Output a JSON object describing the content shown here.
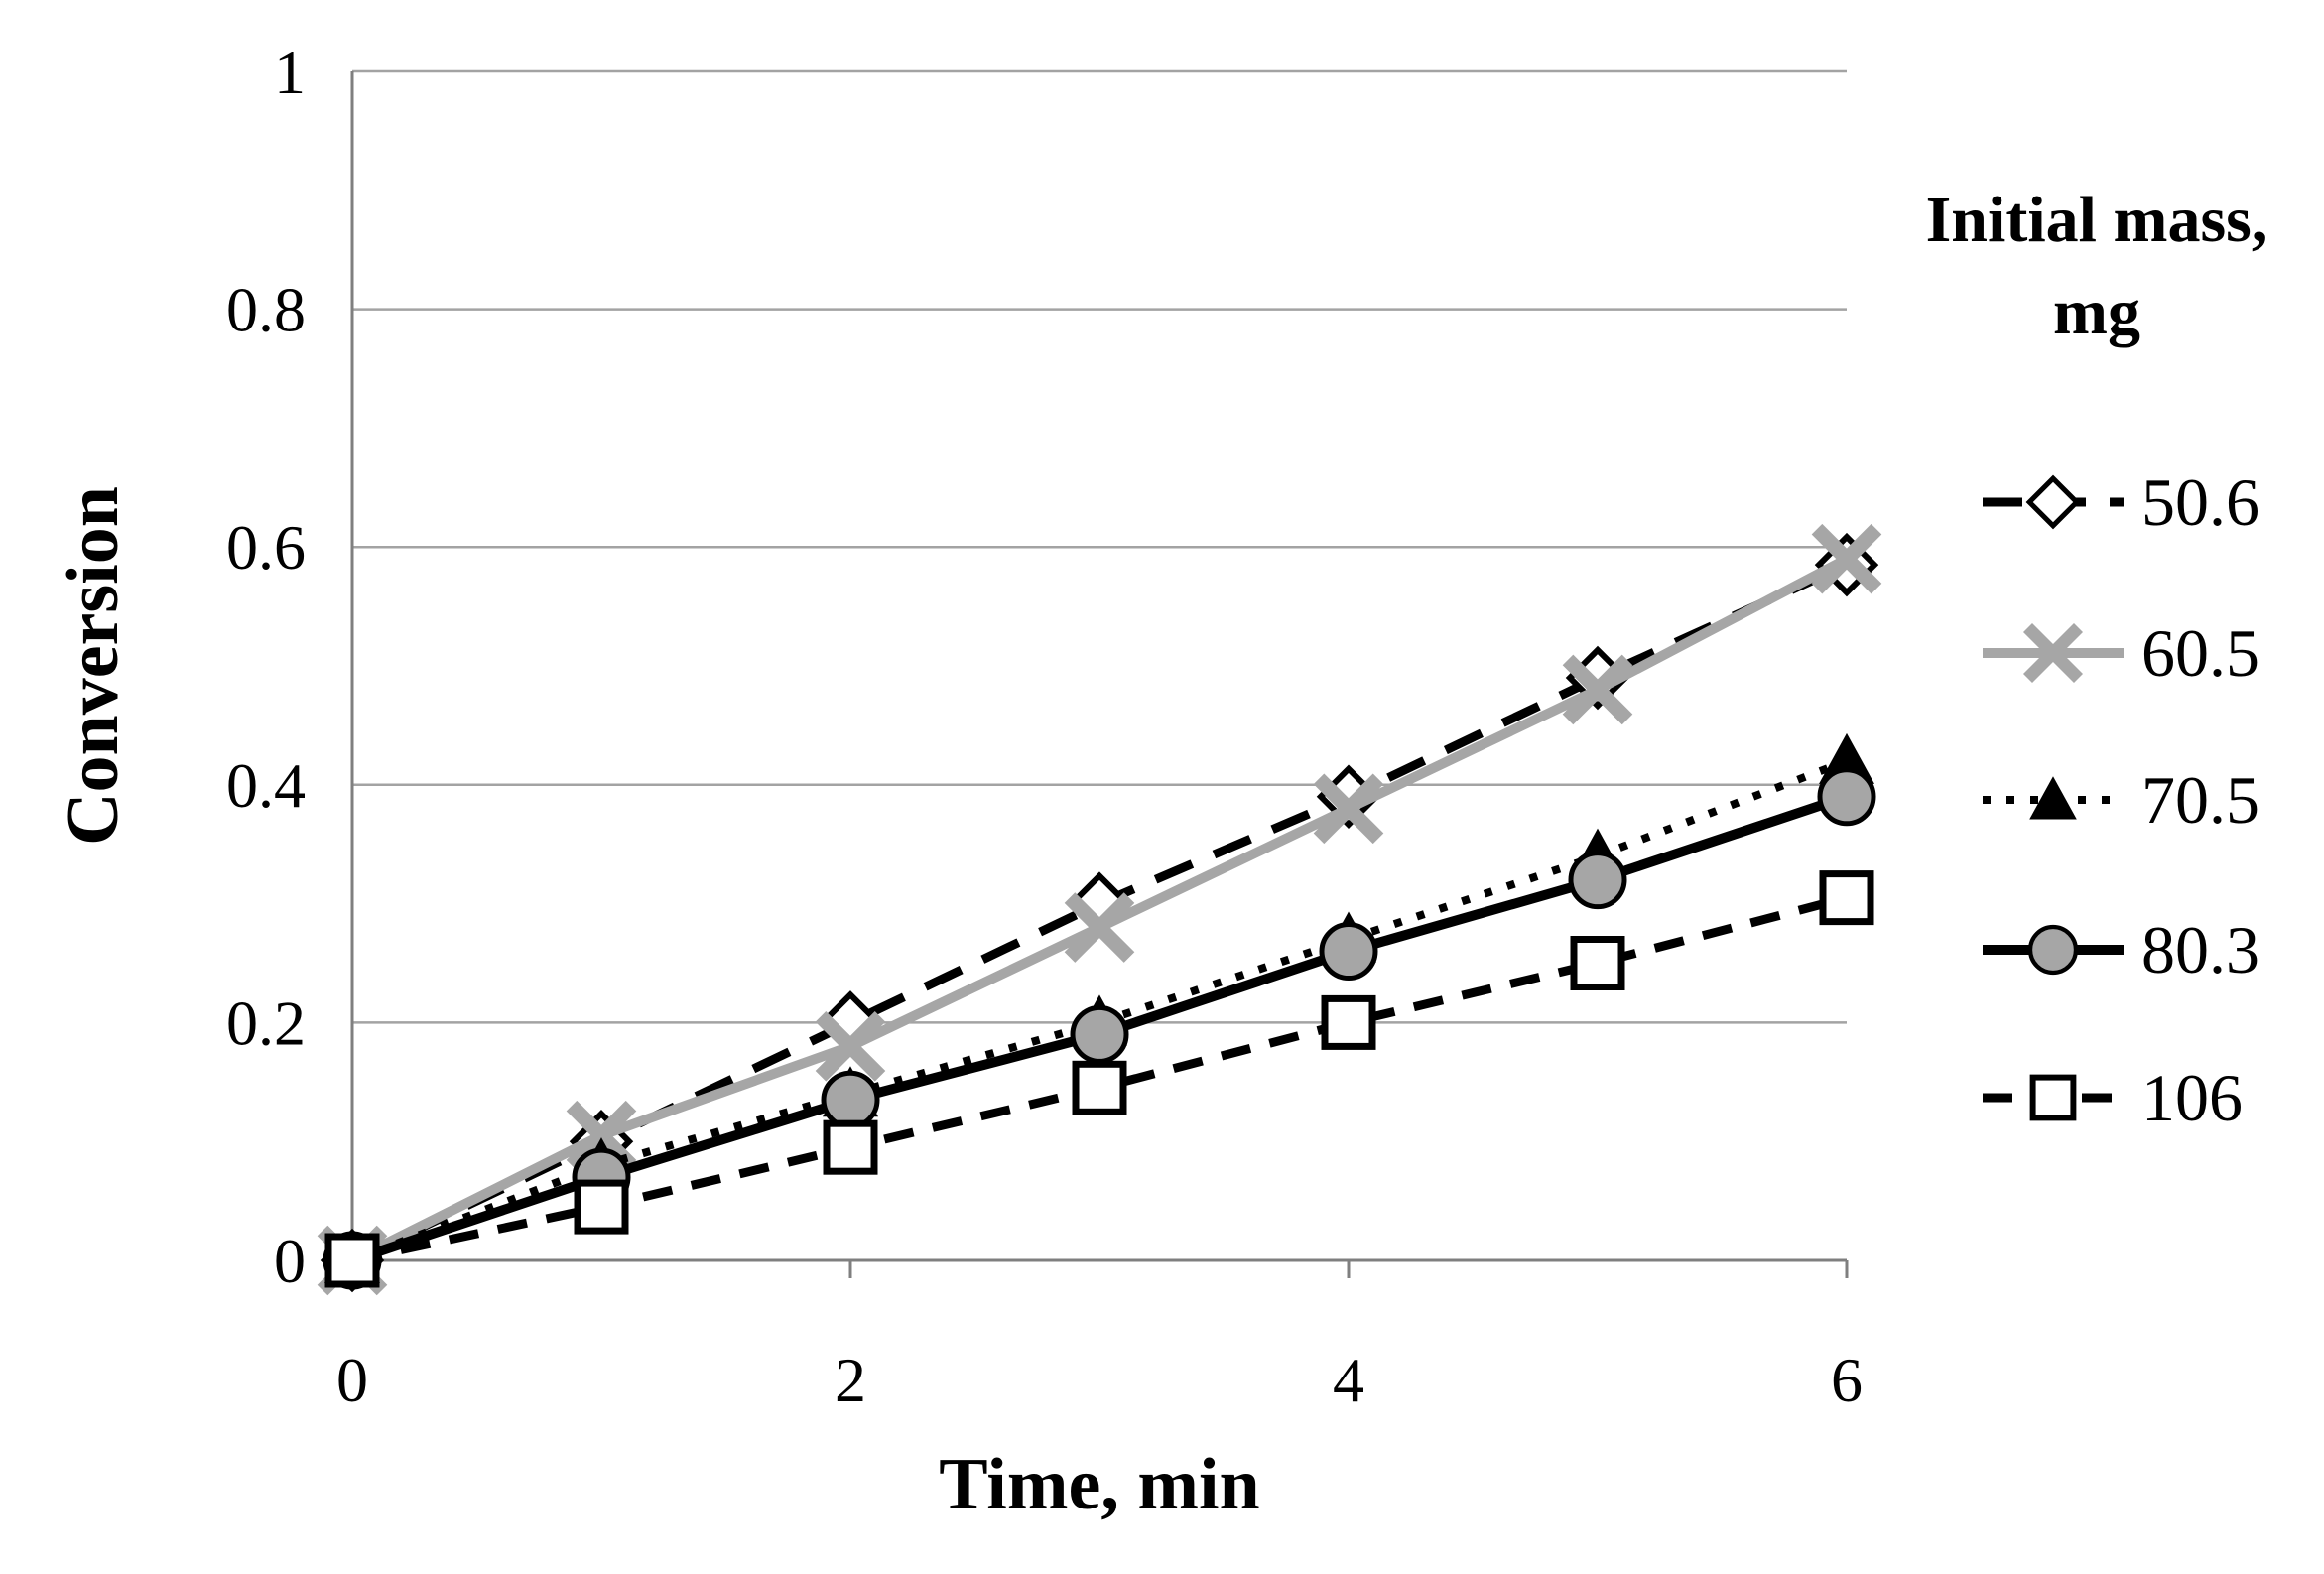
{
  "colors": {
    "black": "#000000",
    "series_gray": "#a6a6a6",
    "gridline": "#a3a3a3",
    "axis": "#7f7f7f",
    "marker_open_fill": "#ffffff",
    "background": "#ffffff",
    "text": "#000000"
  },
  "chart_data": {
    "type": "line",
    "title": "",
    "xlabel": "Time, min",
    "ylabel": "Conversion",
    "xlim": [
      0,
      6
    ],
    "ylim": [
      0,
      1
    ],
    "grid": "horizontal",
    "legend_position": "right",
    "legend_title_line1": "Initial mass,",
    "legend_title_line2": "mg",
    "x": [
      0,
      1,
      2,
      3,
      4,
      5,
      6
    ],
    "xticks": [
      {
        "value": 0,
        "label": "0"
      },
      {
        "value": 2,
        "label": "2"
      },
      {
        "value": 4,
        "label": "4"
      },
      {
        "value": 6,
        "label": "6"
      }
    ],
    "yticks": [
      {
        "value": 0,
        "label": "0"
      },
      {
        "value": 0.2,
        "label": "0.2"
      },
      {
        "value": 0.4,
        "label": "0.4"
      },
      {
        "value": 0.6,
        "label": "0.6"
      },
      {
        "value": 0.8,
        "label": "0.8"
      },
      {
        "value": 1,
        "label": "1"
      }
    ],
    "series": [
      {
        "name": "50.6",
        "values": [
          0,
          0.1,
          0.2,
          0.3,
          0.39,
          0.49,
          0.585
        ],
        "line_style": "dashed",
        "dash": "40 24",
        "line_width": 9,
        "line_color": "#000000",
        "marker": "diamond-open"
      },
      {
        "name": "60.5",
        "values": [
          0,
          0.105,
          0.18,
          0.28,
          0.38,
          0.48,
          0.59
        ],
        "line_style": "solid",
        "dash": "",
        "line_width": 10,
        "line_color": "#a6a6a6",
        "marker": "x-cross"
      },
      {
        "name": "70.5",
        "values": [
          0,
          0.08,
          0.14,
          0.2,
          0.27,
          0.34,
          0.42
        ],
        "line_style": "dotted",
        "dash": "8 16",
        "line_width": 8,
        "line_color": "#000000",
        "marker": "triangle-filled"
      },
      {
        "name": "80.3",
        "values": [
          0,
          0.07,
          0.135,
          0.19,
          0.26,
          0.32,
          0.39
        ],
        "line_style": "solid",
        "dash": "",
        "line_width": 10,
        "line_color": "#000000",
        "marker": "circle-gray"
      },
      {
        "name": "106",
        "values": [
          0,
          0.045,
          0.095,
          0.145,
          0.2,
          0.25,
          0.305
        ],
        "line_style": "dashed",
        "dash": "30 20",
        "line_width": 9,
        "line_color": "#000000",
        "marker": "square-open"
      }
    ]
  }
}
